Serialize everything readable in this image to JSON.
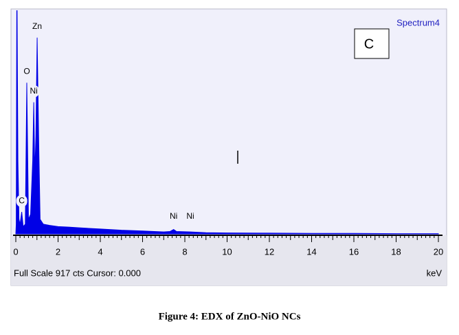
{
  "chart_data": {
    "type": "area",
    "title": "Spectrum4",
    "panel_label": "C",
    "x_label": "keV",
    "status": "Full Scale 917 cts Cursor: 0.000",
    "caption": "Figure 4: EDX of ZnO-NiO NCs",
    "color": "#0000e6",
    "x": [
      0.0,
      0.02,
      0.05,
      0.1,
      0.15,
      0.2,
      0.28,
      0.35,
      0.45,
      0.52,
      0.6,
      0.7,
      0.8,
      0.85,
      0.9,
      0.95,
      1.01,
      1.08,
      1.15,
      1.3,
      1.6,
      2,
      2.5,
      3,
      4,
      5,
      6,
      7,
      7.3,
      7.47,
      7.6,
      8.26,
      9,
      10,
      12,
      14,
      16,
      18,
      20
    ],
    "values": [
      0,
      40,
      1100,
      300,
      60,
      40,
      90,
      30,
      40,
      620,
      60,
      80,
      300,
      540,
      250,
      400,
      805,
      400,
      60,
      40,
      35,
      30,
      28,
      25,
      20,
      15,
      12,
      8,
      10,
      18,
      10,
      8,
      5,
      4,
      3,
      2,
      2,
      1,
      1
    ],
    "annotations": [
      {
        "text": "C",
        "x": 0.28
      },
      {
        "text": "O",
        "x": 0.52
      },
      {
        "text": "Ni",
        "x": 0.85
      },
      {
        "text": "Zn",
        "x": 1.01
      },
      {
        "text": "Ni",
        "x": 7.47
      },
      {
        "text": "Ni",
        "x": 8.26
      }
    ],
    "xlim": [
      0,
      20
    ],
    "xticks": [
      0,
      2,
      4,
      6,
      8,
      10,
      12,
      14,
      16,
      18,
      20
    ],
    "ylim": [
      0,
      917
    ]
  }
}
